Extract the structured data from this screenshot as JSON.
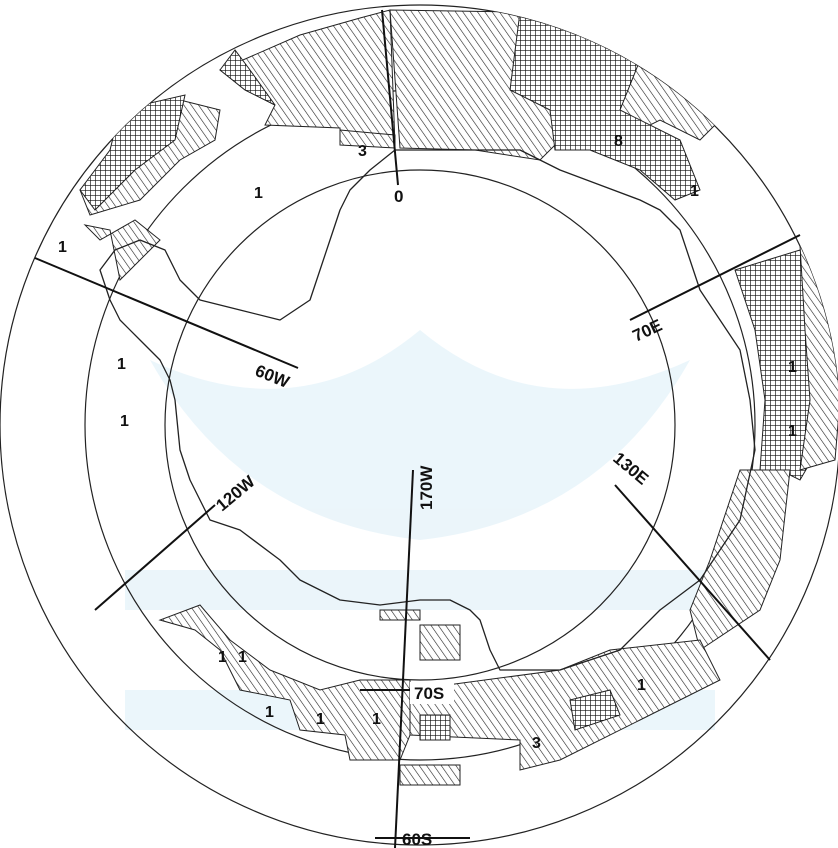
{
  "map": {
    "projection": "south-polar",
    "latitude_labels": [
      "70S",
      "60S"
    ],
    "meridian_labels": [
      "0",
      "70E",
      "130E",
      "170W",
      "120W",
      "60W"
    ],
    "zone_counts": [
      "3",
      "8",
      "1",
      "1",
      "1",
      "1",
      "1",
      "1",
      "1",
      "1",
      "1",
      "1",
      "1",
      "3",
      "1",
      "1"
    ],
    "legend": {
      "hatched": "diagonal hatching",
      "crosshatched": "cross-hatching"
    },
    "colors": {
      "ink": "#111111",
      "background": "#ffffff",
      "watermark": "#dbeef7"
    }
  }
}
